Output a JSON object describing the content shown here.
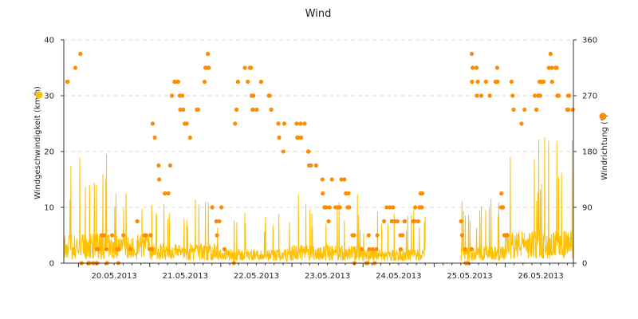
{
  "chart_data": {
    "type": "line+scatter",
    "title": "Wind",
    "x_tick_labels": [
      "20.05.2013",
      "21.05.2013",
      "22.05.2013",
      "23.05.2013",
      "24.05.2013",
      "25.05.2013",
      "26.05.2013"
    ],
    "x_range": [
      "2013-05-19T19:00",
      "2013-05-26T23:00"
    ],
    "y_left": {
      "label": "Windgeschwindigkeit (km/h)",
      "ticks": [
        0,
        10,
        20,
        30,
        40
      ],
      "range": [
        0,
        40
      ]
    },
    "y_right": {
      "label": "Windrichtung (°)",
      "ticks": [
        0,
        90,
        180,
        270,
        360
      ],
      "range": [
        0,
        360
      ]
    },
    "grid": true,
    "legend": "axis-markers",
    "colors": {
      "speed": "#ffc000",
      "direction": "#ff8c00"
    },
    "gaps": [
      [
        "2013-05-24T21:00",
        "2013-05-25T09:00"
      ]
    ],
    "series": [
      {
        "kind": "line",
        "axis": "left",
        "key": "speed",
        "daily_max": [
          21,
          14,
          10,
          13,
          10,
          12,
          23
        ]
      },
      {
        "kind": "scatter",
        "axis": "right",
        "key": "direction",
        "common_values": [
          0,
          22.5,
          45,
          67.5,
          90,
          112.5,
          135,
          157.5,
          180,
          202.5,
          225,
          247.5,
          270,
          292.5,
          315,
          337.5
        ]
      }
    ]
  }
}
